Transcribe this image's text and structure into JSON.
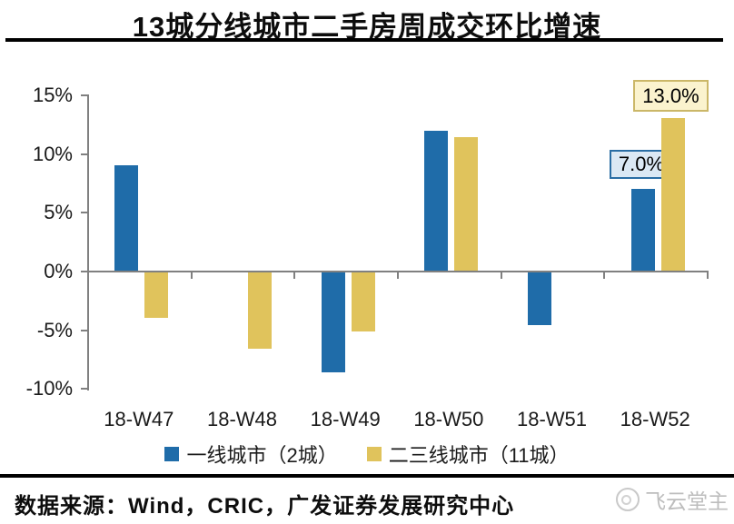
{
  "header": {
    "title": "13城分线城市二手房周成交环比增速"
  },
  "chart_data": {
    "type": "bar",
    "title": "13城分线城市二手房周成交环比增速",
    "categories": [
      "18-W47",
      "18-W48",
      "18-W49",
      "18-W50",
      "18-W51",
      "18-W52"
    ],
    "series": [
      {
        "name": "一线城市（2城）",
        "color": "#1F6CA9",
        "values": [
          9.0,
          0.0,
          -8.5,
          11.9,
          -4.5,
          7.0
        ]
      },
      {
        "name": "二三线城市（11城）",
        "color": "#E0C35C",
        "values": [
          -3.9,
          -6.5,
          -5.0,
          11.4,
          0.0,
          13.0
        ]
      }
    ],
    "xlabel": "",
    "ylabel": "",
    "ylim": [
      -10,
      15
    ],
    "yticks": [
      15,
      10,
      5,
      0,
      -5,
      -10
    ],
    "ytick_labels": [
      "15%",
      "10%",
      "5%",
      "0%",
      "-5%",
      "-10%"
    ],
    "grid": false,
    "legend_position": "bottom",
    "annotations": [
      {
        "series": "一线城市（2城）",
        "category": "18-W52",
        "text": "7.0%"
      },
      {
        "series": "二三线城市（11城）",
        "category": "18-W52",
        "text": "13.0%"
      }
    ]
  },
  "footer": {
    "source": "数据来源：Wind，CRIC，广发证券发展研究中心",
    "watermark": "飞云堂主"
  },
  "colors": {
    "tier1_blue": "#1F6CA9",
    "tier23_yellow": "#E0C35C",
    "axis_gray": "#808080",
    "annotation_yellow_fill": "#FBF3CE",
    "annotation_yellow_border": "#CBB768",
    "annotation_blue_fill": "#DBE8F4",
    "annotation_blue_border": "#2A6DA4",
    "watermark_gray": "#BDBDBD"
  }
}
